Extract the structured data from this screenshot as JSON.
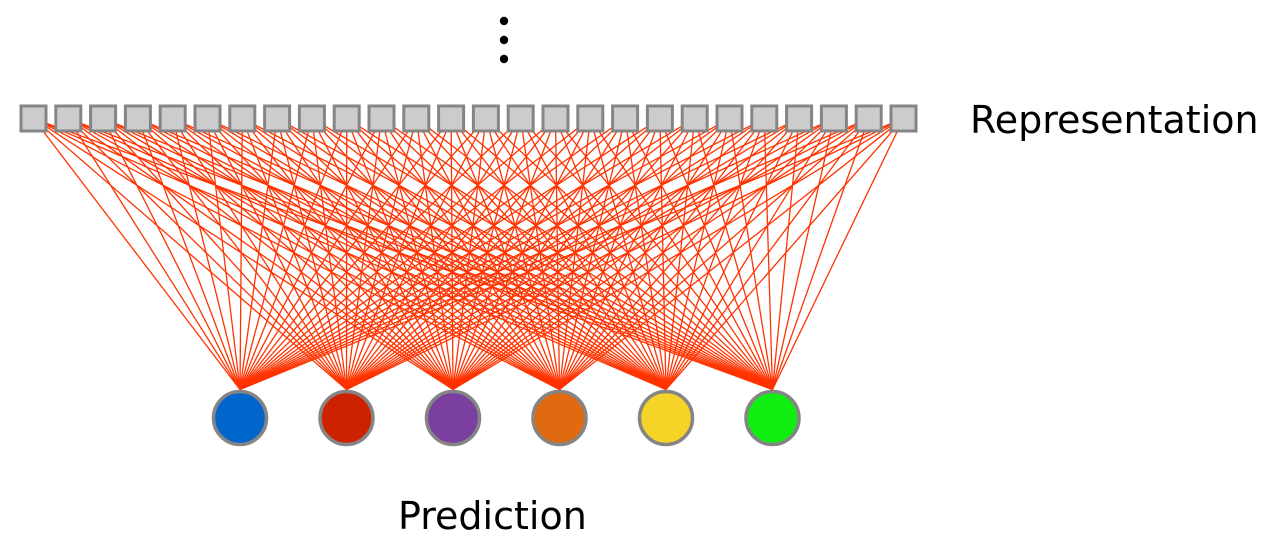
{
  "labels": {
    "representation": "Representation",
    "prediction": "Prediction"
  },
  "diagram": {
    "representation_unit_count": 26,
    "representation_unit_color": "#cccccc",
    "representation_unit_border": "#858585",
    "connection_color": "#ff3300",
    "ellipsis": "⋮",
    "prediction_node_border": "#858585",
    "prediction_nodes": [
      {
        "color": "#0066cc"
      },
      {
        "color": "#cc2200"
      },
      {
        "color": "#7a3fa0"
      },
      {
        "color": "#e06a10"
      },
      {
        "color": "#f5d327"
      },
      {
        "color": "#11ee11"
      }
    ]
  }
}
